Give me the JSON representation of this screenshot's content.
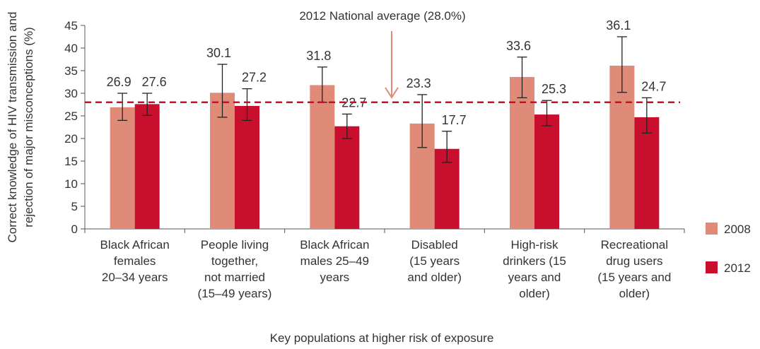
{
  "chart_data": {
    "type": "bar",
    "title": "",
    "xlabel": "Key populations at higher risk of exposure",
    "ylabel_lines": [
      "Correct knowledge of HIV transmission and",
      "rejection of major misconceptions (%)"
    ],
    "ylim": [
      0,
      45
    ],
    "yticks": [
      0,
      5,
      10,
      15,
      20,
      25,
      30,
      35,
      40,
      45
    ],
    "grid": false,
    "legend_position": "right",
    "categories": [
      [
        "Black African",
        "females",
        "20–34 years"
      ],
      [
        "People living",
        "together,",
        "not married",
        "(15–49 years)"
      ],
      [
        "Black African",
        "males 25–49",
        "years"
      ],
      [
        "Disabled",
        "(15 years",
        "and older)"
      ],
      [
        "High-risk",
        "drinkers (15",
        "years and",
        "older)"
      ],
      [
        "Recreational",
        "drug users",
        "(15 years and",
        "older)"
      ]
    ],
    "series": [
      {
        "name": "2008",
        "color": "#e08b78",
        "values": [
          26.9,
          30.1,
          31.8,
          23.3,
          33.6,
          36.1
        ],
        "labels": [
          "26.9",
          "30.1",
          "31.8",
          "23.3",
          "33.6",
          "36.1"
        ],
        "error_low": [
          24.0,
          24.7,
          28.0,
          18.0,
          29.0,
          30.2
        ],
        "error_high": [
          30.0,
          36.4,
          35.8,
          29.7,
          38.0,
          42.5
        ]
      },
      {
        "name": "2012",
        "color": "#c8102e",
        "values": [
          27.6,
          27.2,
          22.7,
          17.7,
          25.3,
          24.7
        ],
        "labels": [
          "27.6",
          "27.2",
          "22.7",
          "17.7",
          "25.3",
          "24.7"
        ],
        "error_low": [
          25.1,
          24.0,
          20.0,
          14.7,
          22.8,
          21.2
        ],
        "error_high": [
          30.0,
          31.0,
          25.4,
          21.6,
          28.4,
          29.0
        ]
      }
    ],
    "reference_line": {
      "value": 28.0,
      "label": "2012 National average (28.0%)",
      "color": "#c8102e",
      "arrow_color": "#e08b78"
    }
  }
}
